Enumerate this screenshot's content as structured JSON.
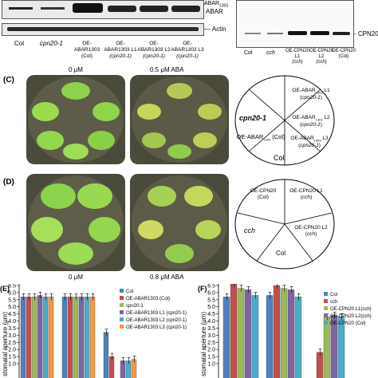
{
  "panel_a": {
    "band_labels": [
      "ABAR",
      "Actin"
    ],
    "band_label_top_cut": "ABAR(1303)",
    "lanes": [
      {
        "line1": "Col",
        "line2": ""
      },
      {
        "line1": "cpn20-1",
        "line2": ""
      },
      {
        "line1": "OE-ABAR1303",
        "line2": "(Col)"
      },
      {
        "line1": "OE-ABAR1303 L1",
        "line2": "(cpn20-1)"
      },
      {
        "line1": "OE-ABAR1303 L2",
        "line2": "(cpn20-1)"
      },
      {
        "line1": "OE-ABAR1303 L3",
        "line2": "(cpn20-1)"
      }
    ]
  },
  "panel_b": {
    "band_label": "- CPN20",
    "lanes": [
      {
        "line1": "Col",
        "line2": ""
      },
      {
        "line1": "cch",
        "line2": ""
      },
      {
        "line1": "OE-CPN20 L1",
        "line2": "(cch)"
      },
      {
        "line1": "OE-CPN20 L2",
        "line2": "(cch)"
      },
      {
        "line1": "OE-CPN20",
        "line2": "(Col)"
      }
    ]
  },
  "panel_c": {
    "letter": "(C)",
    "plate_labels": [
      "0 μM",
      "0.5 μM ABA"
    ],
    "layout": {
      "top": "OE-ABAR1303 L1 (cpn20-1)",
      "left": "cpn20-1",
      "right": "OE-ABAR1303 L2 (cpn20-1)",
      "lower_left": "OE-ABAR1303 (Col)",
      "lower_right": "OE-ABAR1303 L3 (cpn20-1)",
      "bottom": "Col"
    }
  },
  "panel_d": {
    "letter": "(D)",
    "plate_labels": [
      "0 μM",
      "0.8 μM ABA"
    ],
    "layout": {
      "top_left": "OE-CPN20 (Col)",
      "top_right": "OE-CPN20 L1 (cch)",
      "left": "cch",
      "right": "OE-CPN20 L2 (cch)",
      "bottom": "Col"
    }
  },
  "chart_data": [
    {
      "type": "bar",
      "panel": "(E)",
      "ylabel": "stomatal aperture (μm)",
      "yticks": [
        "1.0",
        "1.5",
        "2.0",
        "2.5",
        "3.0",
        "3.5",
        "4.0",
        "4.5",
        "5.0",
        "5.5",
        "6.0",
        "6.5"
      ],
      "ylim": [
        1.0,
        6.5
      ],
      "groups": 3,
      "legend_position": "top-right",
      "series": [
        {
          "name": "Col",
          "color": "#4f81bd",
          "values": [
            5.7,
            5.7,
            3.2
          ]
        },
        {
          "name": "OE-ABAR1303 (Col)",
          "color": "#c0504d",
          "values": [
            5.7,
            5.7,
            1.5
          ]
        },
        {
          "name": "cpn20-1",
          "color": "#9bbb59",
          "values": [
            5.7,
            5.7,
            null
          ]
        },
        {
          "name": "OE-ABAR1303 L1 (cpn20-1)",
          "color": "#8064a2",
          "values": [
            5.8,
            5.7,
            1.2
          ]
        },
        {
          "name": "OE-ABAR1303 L2 (cpn20-1)",
          "color": "#4bacc6",
          "values": [
            5.7,
            5.7,
            1.2
          ]
        },
        {
          "name": "OE-ABAR1303 L3 (cpn20-1)",
          "color": "#f79646",
          "values": [
            5.7,
            5.7,
            1.3
          ]
        }
      ]
    },
    {
      "type": "bar",
      "panel": "(F)",
      "ylabel": "stomatal aperture (μm)",
      "yticks": [
        "1.0",
        "1.5",
        "2.0",
        "2.5",
        "3.0",
        "3.5",
        "4.0",
        "4.5",
        "5.0",
        "5.5",
        "6.0",
        "6.5"
      ],
      "ylim": [
        1.0,
        6.5
      ],
      "groups": 3,
      "legend_position": "top-right",
      "series": [
        {
          "name": "Col",
          "color": "#4f81bd",
          "values": [
            5.7,
            5.8,
            null
          ]
        },
        {
          "name": "cch",
          "color": "#c0504d",
          "values": [
            6.6,
            6.5,
            1.8
          ]
        },
        {
          "name": "OE-CPN20 L1(cch)",
          "color": "#9bbb59",
          "values": [
            6.3,
            6.3,
            4.3
          ]
        },
        {
          "name": "OE-CPN20 L2(cch)",
          "color": "#8064a2",
          "values": [
            6.2,
            6.2,
            4.4
          ]
        },
        {
          "name": "OE-CPN20 (Col)",
          "color": "#4bacc6",
          "values": [
            5.8,
            5.7,
            4.3
          ]
        }
      ]
    }
  ]
}
